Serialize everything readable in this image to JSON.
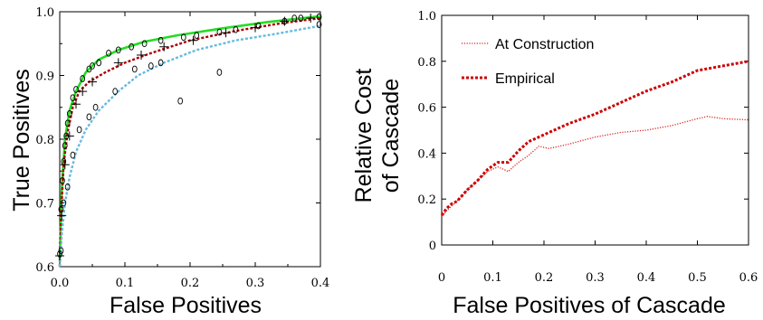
{
  "chart_data": [
    {
      "type": "line",
      "title": "",
      "xlabel": "False Positives",
      "ylabel": "True Positives",
      "xlim": [
        0,
        0.4
      ],
      "ylim": [
        0.6,
        1.0
      ],
      "xticks": [
        0,
        0.1,
        0.2,
        0.3,
        0.4
      ],
      "xtick_labels": [
        "0.0",
        "0.1",
        "0.2",
        "0.3",
        "0.4"
      ],
      "yticks": [
        0.6,
        0.7,
        0.8,
        0.9,
        1.0
      ],
      "ytick_labels": [
        "0.6",
        "0.7",
        "0.8",
        "0.9",
        "1.0"
      ],
      "grid": false,
      "legend": "none",
      "series": [
        {
          "color": "#22dd22",
          "style": "solid",
          "marker": "none",
          "x": [
            0,
            0.003,
            0.008,
            0.015,
            0.025,
            0.04,
            0.06,
            0.09,
            0.13,
            0.18,
            0.25,
            0.32,
            0.4
          ],
          "y": [
            0.61,
            0.72,
            0.8,
            0.845,
            0.875,
            0.905,
            0.925,
            0.94,
            0.953,
            0.963,
            0.974,
            0.984,
            0.993
          ]
        },
        {
          "color": "#aa0000",
          "style": "dotted",
          "marker": "plus",
          "x": [
            0,
            0.002,
            0.006,
            0.012,
            0.02,
            0.03,
            0.045,
            0.07,
            0.1,
            0.14,
            0.2,
            0.27,
            0.34,
            0.4
          ],
          "y": [
            0.6,
            0.68,
            0.76,
            0.81,
            0.85,
            0.875,
            0.89,
            0.905,
            0.92,
            0.935,
            0.955,
            0.97,
            0.982,
            0.99
          ]
        },
        {
          "color": "#66bbdd",
          "style": "dotted",
          "marker": "circle",
          "x": [
            0,
            0.003,
            0.008,
            0.015,
            0.025,
            0.04,
            0.06,
            0.09,
            0.12,
            0.16,
            0.21,
            0.27,
            0.33,
            0.4
          ],
          "y": [
            0.6,
            0.65,
            0.7,
            0.74,
            0.78,
            0.815,
            0.845,
            0.875,
            0.9,
            0.92,
            0.94,
            0.955,
            0.965,
            0.978
          ]
        }
      ],
      "markers": {
        "circle": {
          "x": [
            0.0,
            0.002,
            0.004,
            0.006,
            0.008,
            0.01,
            0.012,
            0.015,
            0.02,
            0.025,
            0.035,
            0.045,
            0.05,
            0.06,
            0.075,
            0.09,
            0.11,
            0.13,
            0.155,
            0.19,
            0.21,
            0.245,
            0.27,
            0.305,
            0.345,
            0.37,
            0.398,
            0.002,
            0.006,
            0.012,
            0.02,
            0.03,
            0.045,
            0.055,
            0.085,
            0.115,
            0.14,
            0.155,
            0.185,
            0.245,
            0.36,
            0.398
          ],
          "y": [
            0.62,
            0.69,
            0.735,
            0.765,
            0.79,
            0.805,
            0.825,
            0.84,
            0.865,
            0.878,
            0.895,
            0.91,
            0.915,
            0.92,
            0.935,
            0.94,
            0.945,
            0.95,
            0.955,
            0.96,
            0.963,
            0.968,
            0.972,
            0.978,
            0.985,
            0.99,
            0.992,
            0.625,
            0.7,
            0.725,
            0.775,
            0.815,
            0.835,
            0.85,
            0.875,
            0.91,
            0.915,
            0.92,
            0.86,
            0.905,
            0.99,
            0.98
          ]
        },
        "plus": {
          "x": [
            0.0,
            0.003,
            0.008,
            0.015,
            0.025,
            0.035,
            0.05,
            0.09,
            0.125,
            0.16,
            0.205,
            0.255,
            0.3,
            0.345,
            0.385
          ],
          "y": [
            0.617,
            0.68,
            0.76,
            0.805,
            0.855,
            0.875,
            0.89,
            0.92,
            0.932,
            0.945,
            0.955,
            0.967,
            0.975,
            0.985,
            0.99
          ]
        }
      }
    },
    {
      "type": "line",
      "title": "",
      "xlabel": "False Positives of Cascade",
      "ylabel": "Relative Cost of Cascade",
      "ylabel_lines": [
        "Relative Cost",
        "of Cascade"
      ],
      "xlim": [
        0,
        0.6
      ],
      "ylim": [
        0,
        1.0
      ],
      "xticks": [
        0,
        0.1,
        0.2,
        0.3,
        0.4,
        0.5,
        0.6
      ],
      "xtick_labels": [
        "0",
        "0.1",
        "0.2",
        "0.3",
        "0.4",
        "0.5",
        "0.6"
      ],
      "yticks": [
        0,
        0.2,
        0.4,
        0.6,
        0.8,
        1.0
      ],
      "ytick_labels": [
        "0",
        "0.2",
        "0.4",
        "0.6",
        "0.8",
        "1.0"
      ],
      "grid": false,
      "legend": "top-left",
      "series": [
        {
          "name": "At Construction",
          "color": "#dd2222",
          "style": "dotted-fine",
          "x": [
            0,
            0.01,
            0.02,
            0.03,
            0.05,
            0.07,
            0.09,
            0.11,
            0.13,
            0.15,
            0.17,
            0.19,
            0.21,
            0.25,
            0.3,
            0.35,
            0.4,
            0.45,
            0.5,
            0.52,
            0.55,
            0.6
          ],
          "y": [
            0.12,
            0.15,
            0.17,
            0.19,
            0.24,
            0.28,
            0.32,
            0.34,
            0.32,
            0.36,
            0.39,
            0.43,
            0.42,
            0.44,
            0.47,
            0.49,
            0.5,
            0.52,
            0.55,
            0.56,
            0.55,
            0.545
          ]
        },
        {
          "name": "Empirical",
          "color": "#cc0000",
          "style": "dotted-bold",
          "x": [
            0,
            0.01,
            0.02,
            0.03,
            0.05,
            0.07,
            0.09,
            0.11,
            0.13,
            0.15,
            0.17,
            0.19,
            0.21,
            0.25,
            0.3,
            0.35,
            0.4,
            0.45,
            0.5,
            0.55,
            0.6
          ],
          "y": [
            0.13,
            0.16,
            0.18,
            0.19,
            0.24,
            0.28,
            0.33,
            0.36,
            0.36,
            0.41,
            0.45,
            0.47,
            0.49,
            0.53,
            0.57,
            0.62,
            0.67,
            0.71,
            0.76,
            0.78,
            0.8
          ]
        }
      ]
    }
  ]
}
